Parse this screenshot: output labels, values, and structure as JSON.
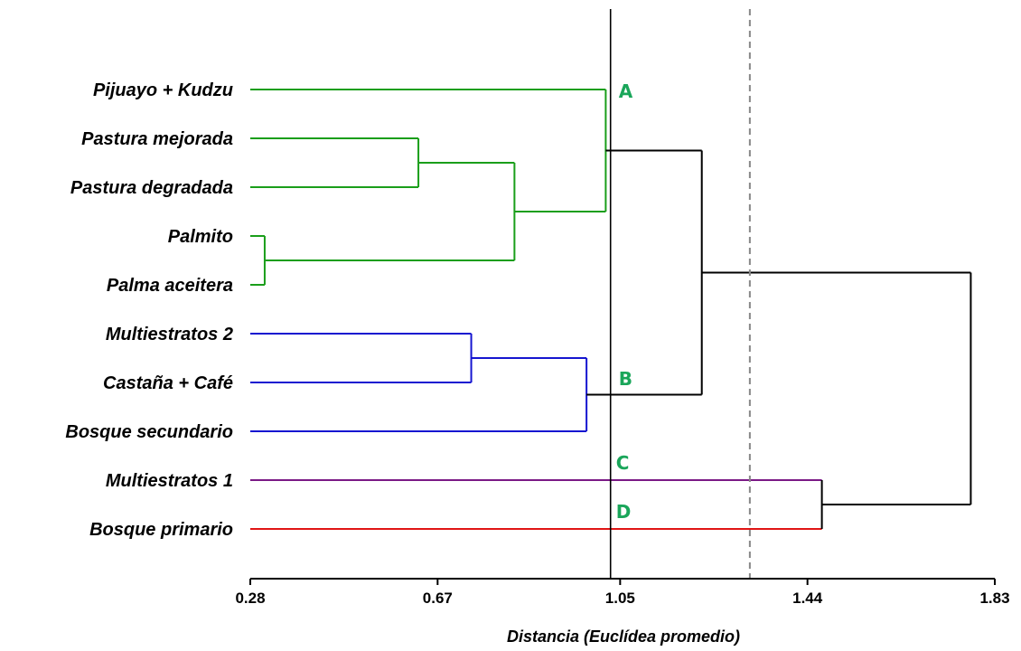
{
  "chart_data": {
    "type": "dendrogram",
    "xlabel": "Distancia (Euclídea promedio)",
    "xlim": [
      0.28,
      1.83
    ],
    "x_ticks": [
      "0.28",
      "0.67",
      "1.05",
      "1.44",
      "1.83"
    ],
    "x_tick_values": [
      0.28,
      0.67,
      1.05,
      1.44,
      1.83
    ],
    "leaves": [
      "Pijuayo + Kudzu",
      "Pastura mejorada",
      "Pastura degradada",
      "Palmito",
      "Palma aceitera",
      "Multiestratos 2",
      "Castaña + Café",
      "Bosque secundario",
      "Multiestratos 1",
      "Bosque primario"
    ],
    "merges": [
      {
        "id": "m1",
        "children": [
          "Palmito",
          "Palma aceitera"
        ],
        "height": 0.31,
        "color": "#1a9e1a"
      },
      {
        "id": "m2",
        "children": [
          "Pastura mejorada",
          "Pastura degradada"
        ],
        "height": 0.63,
        "color": "#1a9e1a"
      },
      {
        "id": "m3",
        "children": [
          "m2",
          "m1"
        ],
        "height": 0.83,
        "color": "#1a9e1a"
      },
      {
        "id": "m4",
        "children": [
          "Pijuayo + Kudzu",
          "m3"
        ],
        "height": 1.02,
        "color": "#1a9e1a"
      },
      {
        "id": "m5",
        "children": [
          "Multiestratos 2",
          "Castaña + Café"
        ],
        "height": 0.74,
        "color": "#1515d0"
      },
      {
        "id": "m6",
        "children": [
          "m5",
          "Bosque secundario"
        ],
        "height": 0.98,
        "color": "#1515d0"
      },
      {
        "id": "m7",
        "children": [
          "m4",
          "m6"
        ],
        "height": 1.22,
        "color": "#000000"
      },
      {
        "id": "m8",
        "children": [
          "Multiestratos 1",
          "Bosque primario"
        ],
        "height": 1.47,
        "color": "#000000"
      },
      {
        "id": "m9",
        "children": [
          "m7",
          "m8"
        ],
        "height": 1.78,
        "color": "#000000"
      }
    ],
    "leaf_colors": {
      "Multiestratos 1": "#7b1a86",
      "Bosque primario": "#e01515"
    },
    "cut_lines": [
      {
        "x": 1.03,
        "style": "solid",
        "color": "#000000"
      },
      {
        "x": 1.32,
        "style": "dashed",
        "color": "#888888"
      }
    ],
    "group_labels": [
      {
        "text": "A",
        "color": "#1aa65a"
      },
      {
        "text": "B",
        "color": "#1aa65a"
      },
      {
        "text": "C",
        "color": "#1aa65a"
      },
      {
        "text": "D",
        "color": "#1aa65a"
      }
    ]
  }
}
